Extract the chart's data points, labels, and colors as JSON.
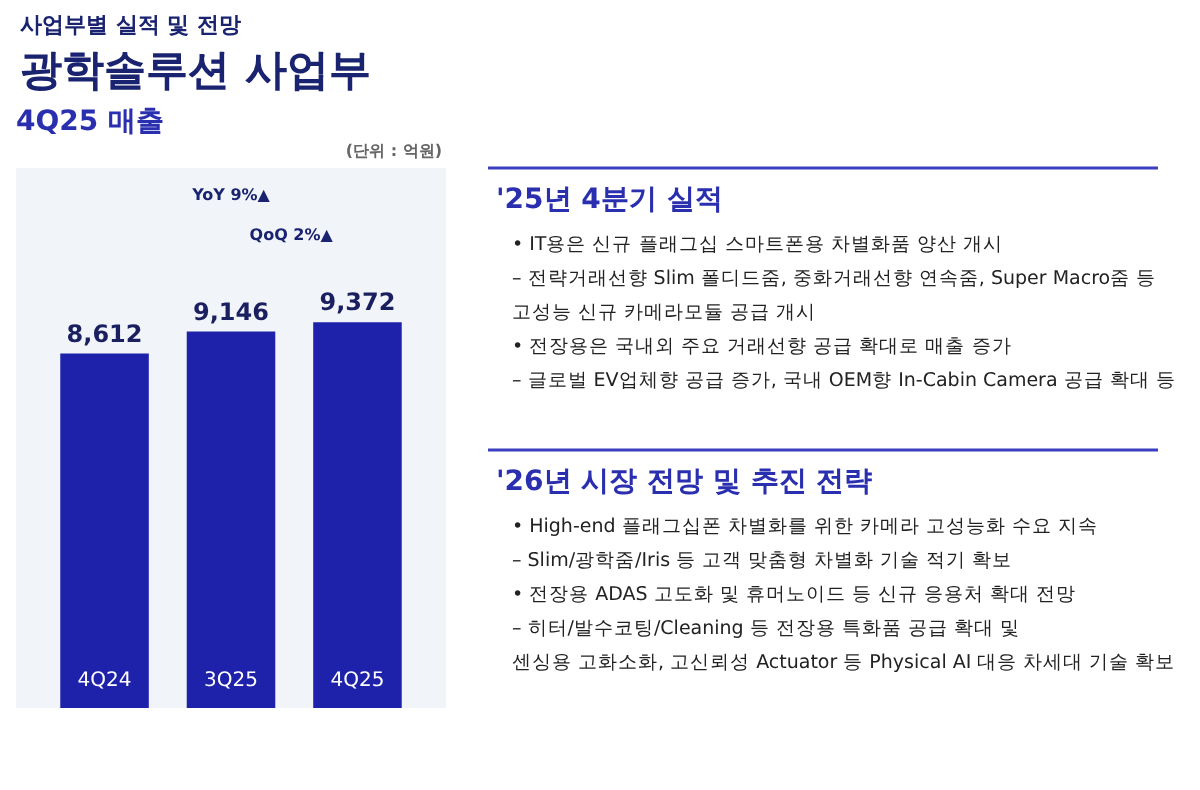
{
  "chart_data": [
    {
      "type": "other",
      "title": "광학솔루션 사업부",
      "subtitle": "사업부별 실적 및 전망"
    },
    {
      "type": "bar",
      "title": "4Q25 매출",
      "categories": [
        "4Q24",
        "3Q25",
        "4Q25"
      ],
      "values": [
        8612,
        9146,
        9372
      ],
      "color": "#1e22aa",
      "value_labels": [
        "8,612",
        "9,146",
        "9,372"
      ],
      "annotations": [
        "(단위 : 억원)",
        "YoY 9%▲",
        "QoQ 2%▲"
      ]
    },
    {
      "type": "other",
      "title": "'25년 4분기 실적",
      "annotations": [
        "• IT용은 신규 플래그십 스마트폰용 차별화품 양산 개시",
        "– 전략거래선향 Slim 폴디드줌, 중화거래선향 연속줌, Super Macro줌 등",
        "고성능 신규 카메라모듈 공급 개시",
        "• 전장용은 국내외 주요 거래선향 공급 확대로 매출 증가",
        "– 글로벌 EV업체향 공급 증가, 국내 OEM향 In-Cabin Camera 공급 확대 등"
      ]
    },
    {
      "type": "other",
      "title": "'26년 시장 전망 및 추진 전략",
      "annotations": [
        "• High-end 플래그십폰 차별화를 위한 카메라 고성능화 수요 지속",
        "– Slim/광학줌/Iris 등 고객 맞춤형 차별화 기술 적기 확보",
        "• 전장용 ADAS 고도화 및 휴머노이드 등 신규 응용처 확대 전망",
        "– 히터/발수코팅/Cleaning 등 전장용 특화품 공급 확대 및",
        "센싱용 고화소화, 고신뢰성 Actuator 등 Physical AI 대응 차세대 기술 확보"
      ]
    }
  ]
}
